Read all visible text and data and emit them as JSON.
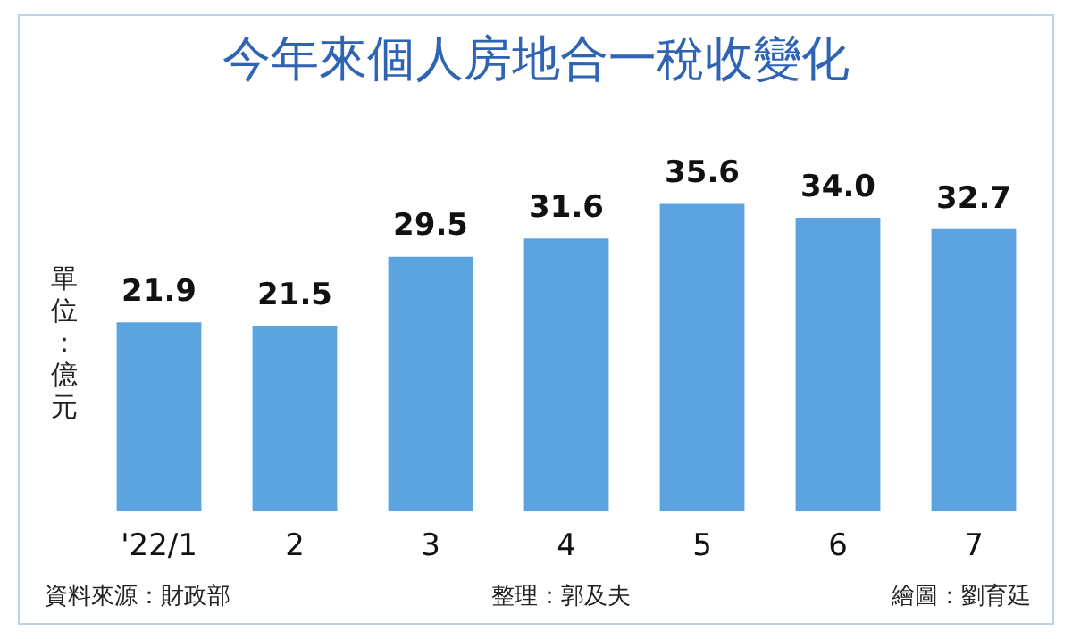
{
  "chart_data": {
    "type": "bar",
    "title": "今年來個人房地合一稅收變化",
    "ylabel": "單位：億元",
    "categories": [
      "'22/1",
      "2",
      "3",
      "4",
      "5",
      "6",
      "7"
    ],
    "values": [
      21.9,
      21.5,
      29.5,
      31.6,
      35.6,
      34.0,
      32.7
    ],
    "value_labels": [
      "21.9",
      "21.5",
      "29.5",
      "31.6",
      "35.6",
      "34.0",
      "32.7"
    ],
    "color": "#5ba4e0",
    "grid": false,
    "legend": false,
    "tick_labels": "x",
    "annotations": [
      "資料來源：財政部",
      "整理：郭及夫",
      "繪圖：劉育廷"
    ]
  }
}
